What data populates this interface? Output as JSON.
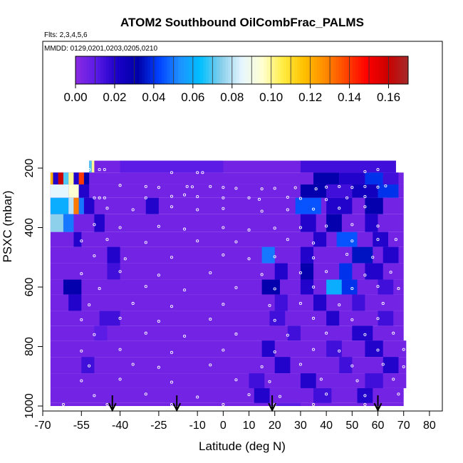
{
  "header": {
    "title": "ATOM2 Southbound OilCombFrac_PALMS",
    "flights_note": "Flts: 2,3,4,5,6",
    "dates_note": "MMDD: 0129,0201,0203,0205,0210"
  },
  "colorbar": {
    "ticks": [
      0.0,
      0.02,
      0.04,
      0.06,
      0.08,
      0.1,
      0.12,
      0.14,
      0.16
    ],
    "tick_labels": [
      "0.00",
      "0.02",
      "0.04",
      "0.06",
      "0.08",
      "0.10",
      "0.12",
      "0.14",
      "0.16"
    ],
    "range": [
      0,
      0.17
    ],
    "palette": [
      "#8a2be2",
      "#5a1ae6",
      "#1a00c8",
      "#0000a8",
      "#0040ff",
      "#1e90ff",
      "#00bfff",
      "#87ceeb",
      "#e6f6ff",
      "#ffffd0",
      "#ffec40",
      "#ffc000",
      "#ff8c00",
      "#ff4500",
      "#ff0000",
      "#cc0000",
      "#a52a2a"
    ]
  },
  "chart_data": {
    "type": "heatmap",
    "title": "ATOM2 Southbound OilCombFrac_PALMS",
    "xlabel": "Latitude (deg N)",
    "ylabel": "PSXC (mbar)",
    "xlim": [
      -70,
      85
    ],
    "ylim": [
      1000,
      60
    ],
    "y_reversed": true,
    "x_ticks": [
      -70,
      -55,
      -40,
      -25,
      -10,
      0,
      10,
      20,
      30,
      40,
      50,
      60,
      70,
      80
    ],
    "x_tick_labels": [
      "-70",
      "-55",
      "-40",
      "-25",
      "-10",
      "0",
      "10",
      "20",
      "30",
      "40",
      "50",
      "60",
      "70",
      "80"
    ],
    "y_ticks": [
      200,
      400,
      600,
      800,
      1000
    ],
    "y_tick_labels": [
      "200",
      "400",
      "600",
      "800",
      "1000"
    ],
    "background_value": 0.005,
    "bands": [
      {
        "p_top": 175,
        "p_bot": 215,
        "lat_start": -52,
        "lat_end": 67,
        "segments": [
          [
            -52,
            -51,
            0.07
          ],
          [
            -51,
            -50,
            0.1
          ],
          [
            -40,
            0,
            0.01
          ],
          [
            30,
            67,
            0.015
          ]
        ]
      },
      {
        "p_top": 215,
        "p_bot": 255,
        "lat_start": -67,
        "lat_end": 70,
        "segments": [
          [
            -67,
            -66,
            0.12
          ],
          [
            -66,
            -64,
            0.02
          ],
          [
            -64,
            -62,
            0.16
          ],
          [
            -62,
            -60,
            0.07
          ],
          [
            -60,
            -58,
            0.1
          ],
          [
            -58,
            -56,
            0.02
          ],
          [
            -56,
            -54,
            0.14
          ],
          [
            -54,
            -52,
            0.03
          ],
          [
            35,
            45,
            0.03
          ],
          [
            45,
            55,
            0.02
          ],
          [
            55,
            62,
            0.04
          ],
          [
            62,
            68,
            0.015
          ]
        ]
      },
      {
        "p_top": 255,
        "p_bot": 300,
        "lat_start": -67,
        "lat_end": 70,
        "segments": [
          [
            -67,
            -60,
            0.085
          ],
          [
            -60,
            -56,
            0.095
          ],
          [
            -56,
            -52,
            0.02
          ],
          [
            30,
            40,
            0.03
          ],
          [
            40,
            50,
            0.015
          ],
          [
            50,
            60,
            0.025
          ],
          [
            60,
            68,
            0.04
          ]
        ]
      },
      {
        "p_top": 300,
        "p_bot": 355,
        "lat_start": -67,
        "lat_end": 70,
        "segments": [
          [
            -67,
            -60,
            0.06
          ],
          [
            -60,
            -58,
            0.08
          ],
          [
            -58,
            -56,
            0.13
          ],
          [
            -56,
            -54,
            0.05
          ],
          [
            -54,
            -50,
            0.02
          ],
          [
            -30,
            -25,
            0.02
          ],
          [
            28,
            38,
            0.045
          ],
          [
            40,
            50,
            0.02
          ],
          [
            55,
            62,
            0.03
          ]
        ]
      },
      {
        "p_top": 355,
        "p_bot": 415,
        "lat_start": -67,
        "lat_end": 70,
        "segments": [
          [
            -67,
            -62,
            0.075
          ],
          [
            -62,
            -58,
            0.05
          ],
          [
            -50,
            -46,
            0.02
          ],
          [
            30,
            36,
            0.02
          ],
          [
            40,
            46,
            0.03
          ],
          [
            55,
            60,
            0.02
          ]
        ]
      },
      {
        "p_top": 415,
        "p_bot": 465,
        "lat_start": -67,
        "lat_end": 70,
        "segments": [
          [
            -58,
            -55,
            0.02
          ],
          [
            35,
            40,
            0.02
          ],
          [
            44,
            52,
            0.045
          ],
          [
            58,
            64,
            0.02
          ]
        ]
      },
      {
        "p_top": 465,
        "p_bot": 520,
        "lat_start": -67,
        "lat_end": 70,
        "segments": [
          [
            -45,
            -40,
            0.02
          ],
          [
            15,
            20,
            0.05
          ],
          [
            30,
            35,
            0.02
          ],
          [
            50,
            58,
            0.035
          ],
          [
            62,
            68,
            0.02
          ]
        ]
      },
      {
        "p_top": 520,
        "p_bot": 575,
        "lat_start": -67,
        "lat_end": 70,
        "segments": [
          [
            -45,
            -40,
            0.015
          ],
          [
            20,
            25,
            0.02
          ],
          [
            30,
            35,
            0.03
          ],
          [
            45,
            50,
            0.04
          ],
          [
            55,
            62,
            0.02
          ]
        ]
      },
      {
        "p_top": 575,
        "p_bot": 625,
        "lat_start": -67,
        "lat_end": 70,
        "segments": [
          [
            -62,
            -55,
            0.03
          ],
          [
            15,
            22,
            0.03
          ],
          [
            30,
            35,
            0.02
          ],
          [
            40,
            46,
            0.06
          ],
          [
            46,
            52,
            0.04
          ],
          [
            60,
            66,
            0.015
          ]
        ]
      },
      {
        "p_top": 625,
        "p_bot": 680,
        "lat_start": -67,
        "lat_end": 70,
        "segments": [
          [
            -60,
            -55,
            0.02
          ],
          [
            20,
            25,
            0.015
          ],
          [
            35,
            40,
            0.02
          ],
          [
            50,
            55,
            0.015
          ]
        ]
      },
      {
        "p_top": 680,
        "p_bot": 730,
        "lat_start": -67,
        "lat_end": 70,
        "segments": [
          [
            -48,
            -40,
            0.015
          ],
          [
            18,
            24,
            0.015
          ],
          [
            40,
            45,
            0.02
          ],
          [
            60,
            66,
            0.015
          ]
        ]
      },
      {
        "p_top": 730,
        "p_bot": 780,
        "lat_start": -67,
        "lat_end": 70,
        "segments": [
          [
            -50,
            -45,
            0.01
          ],
          [
            25,
            30,
            0.015
          ],
          [
            50,
            58,
            0.02
          ]
        ]
      },
      {
        "p_top": 780,
        "p_bot": 835,
        "lat_start": -67,
        "lat_end": 71,
        "segments": [
          [
            15,
            20,
            0.02
          ],
          [
            40,
            46,
            0.015
          ],
          [
            55,
            62,
            0.02
          ]
        ]
      },
      {
        "p_top": 835,
        "p_bot": 890,
        "lat_start": -67,
        "lat_end": 71,
        "segments": [
          [
            -55,
            -50,
            0.015
          ],
          [
            20,
            26,
            0.02
          ],
          [
            45,
            50,
            0.015
          ],
          [
            62,
            68,
            0.02
          ]
        ]
      },
      {
        "p_top": 890,
        "p_bot": 940,
        "lat_start": -67,
        "lat_end": 71,
        "segments": [
          [
            10,
            16,
            0.015
          ],
          [
            30,
            36,
            0.02
          ],
          [
            55,
            62,
            0.015
          ]
        ]
      },
      {
        "p_top": 940,
        "p_bot": 990,
        "lat_start": -67,
        "lat_end": 70,
        "segments": [
          [
            12,
            18,
            0.02
          ],
          [
            35,
            42,
            0.015
          ],
          [
            52,
            58,
            0.02
          ]
        ]
      },
      {
        "p_top": 990,
        "p_bot": 1000,
        "lat_start": -67,
        "lat_end": 70,
        "segments": [
          [
            20,
            30,
            0.01
          ]
        ]
      }
    ],
    "arrows": [
      -43,
      -18,
      19,
      60
    ],
    "markers": [
      [
        -52,
        205
      ],
      [
        -48,
        205
      ],
      [
        -46,
        205
      ],
      [
        -20,
        215
      ],
      [
        -10,
        215
      ],
      [
        -8,
        215
      ],
      [
        55,
        212
      ],
      [
        60,
        205
      ],
      [
        -40,
        258
      ],
      [
        -30,
        262
      ],
      [
        -25,
        265
      ],
      [
        -14,
        262
      ],
      [
        -12,
        263
      ],
      [
        -5,
        262
      ],
      [
        0,
        265
      ],
      [
        5,
        268
      ],
      [
        15,
        270
      ],
      [
        20,
        268
      ],
      [
        28,
        266
      ],
      [
        36,
        270
      ],
      [
        40,
        264
      ],
      [
        45,
        262
      ],
      [
        50,
        265
      ],
      [
        55,
        262
      ],
      [
        60,
        264
      ],
      [
        63,
        260
      ],
      [
        -50,
        300
      ],
      [
        -48,
        300
      ],
      [
        -46,
        300
      ],
      [
        -30,
        300
      ],
      [
        -20,
        295
      ],
      [
        -15,
        290
      ],
      [
        -10,
        296
      ],
      [
        0,
        300
      ],
      [
        10,
        300
      ],
      [
        14,
        305
      ],
      [
        25,
        298
      ],
      [
        30,
        302
      ],
      [
        40,
        306
      ],
      [
        48,
        300
      ],
      [
        55,
        296
      ],
      [
        -45,
        335
      ],
      [
        -35,
        340
      ],
      [
        -20,
        330
      ],
      [
        -10,
        340
      ],
      [
        0,
        336
      ],
      [
        15,
        345
      ],
      [
        25,
        340
      ],
      [
        35,
        338
      ],
      [
        45,
        335
      ],
      [
        55,
        330
      ],
      [
        -50,
        390
      ],
      [
        -40,
        400
      ],
      [
        -25,
        396
      ],
      [
        -15,
        405
      ],
      [
        0,
        400
      ],
      [
        10,
        408
      ],
      [
        20,
        402
      ],
      [
        30,
        400
      ],
      [
        40,
        395
      ],
      [
        50,
        390
      ],
      [
        60,
        395
      ],
      [
        -55,
        445
      ],
      [
        -45,
        440
      ],
      [
        -30,
        450
      ],
      [
        -10,
        445
      ],
      [
        5,
        448
      ],
      [
        25,
        440
      ],
      [
        35,
        452
      ],
      [
        50,
        445
      ],
      [
        60,
        440
      ],
      [
        67,
        440
      ],
      [
        -50,
        495
      ],
      [
        -38,
        505
      ],
      [
        -20,
        500
      ],
      [
        0,
        492
      ],
      [
        10,
        505
      ],
      [
        20,
        498
      ],
      [
        35,
        502
      ],
      [
        48,
        490
      ],
      [
        58,
        500
      ],
      [
        -55,
        555
      ],
      [
        -40,
        548
      ],
      [
        -25,
        560
      ],
      [
        -5,
        552
      ],
      [
        15,
        558
      ],
      [
        30,
        552
      ],
      [
        40,
        548
      ],
      [
        55,
        560
      ],
      [
        65,
        550
      ],
      [
        -48,
        605
      ],
      [
        -30,
        598
      ],
      [
        -15,
        610
      ],
      [
        5,
        602
      ],
      [
        20,
        606
      ],
      [
        35,
        600
      ],
      [
        50,
        605
      ],
      [
        60,
        598
      ],
      [
        68,
        605
      ],
      [
        -52,
        660
      ],
      [
        -35,
        655
      ],
      [
        -20,
        665
      ],
      [
        0,
        658
      ],
      [
        18,
        662
      ],
      [
        30,
        655
      ],
      [
        45,
        660
      ],
      [
        62,
        655
      ],
      [
        -55,
        710
      ],
      [
        -40,
        705
      ],
      [
        -25,
        715
      ],
      [
        -5,
        708
      ],
      [
        20,
        712
      ],
      [
        35,
        705
      ],
      [
        50,
        710
      ],
      [
        60,
        706
      ],
      [
        -50,
        760
      ],
      [
        -30,
        755
      ],
      [
        -15,
        765
      ],
      [
        5,
        758
      ],
      [
        25,
        762
      ],
      [
        40,
        755
      ],
      [
        55,
        760
      ],
      [
        66,
        755
      ],
      [
        -55,
        815
      ],
      [
        -40,
        810
      ],
      [
        -20,
        820
      ],
      [
        0,
        812
      ],
      [
        20,
        818
      ],
      [
        35,
        810
      ],
      [
        45,
        815
      ],
      [
        60,
        812
      ],
      [
        70,
        810
      ],
      [
        -52,
        865
      ],
      [
        -35,
        860
      ],
      [
        -25,
        870
      ],
      [
        -5,
        862
      ],
      [
        15,
        868
      ],
      [
        30,
        860
      ],
      [
        50,
        865
      ],
      [
        62,
        860
      ],
      [
        70,
        868
      ],
      [
        -55,
        915
      ],
      [
        -40,
        910
      ],
      [
        -20,
        920
      ],
      [
        5,
        912
      ],
      [
        18,
        918
      ],
      [
        38,
        910
      ],
      [
        52,
        915
      ],
      [
        66,
        910
      ],
      [
        -50,
        965
      ],
      [
        -30,
        960
      ],
      [
        -10,
        970
      ],
      [
        10,
        962
      ],
      [
        22,
        968
      ],
      [
        40,
        960
      ],
      [
        55,
        965
      ],
      [
        68,
        960
      ],
      [
        -62,
        995
      ],
      [
        -45,
        995
      ],
      [
        -20,
        995
      ],
      [
        0,
        995
      ],
      [
        20,
        995
      ],
      [
        35,
        995
      ],
      [
        55,
        995
      ]
    ]
  }
}
